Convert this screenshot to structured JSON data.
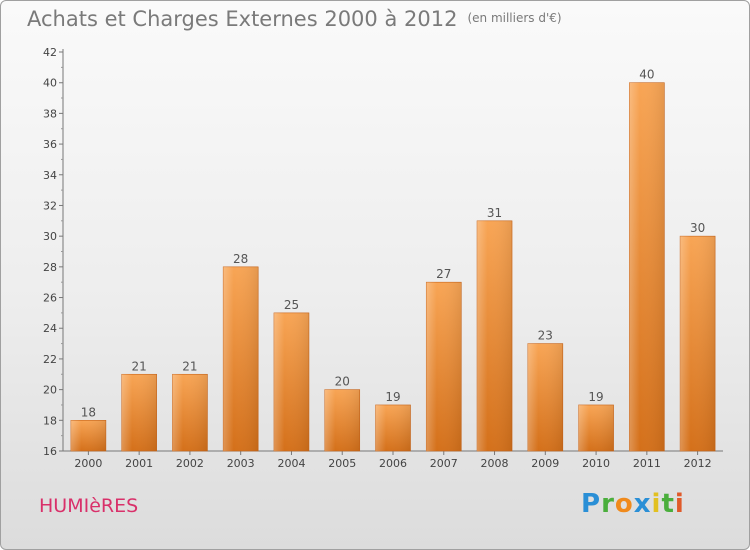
{
  "title": "Achats et Charges Externes 2000 à 2012",
  "subtitle": "(en milliers d'€)",
  "commune": "HUMIèRES",
  "logo": {
    "letters": [
      {
        "ch": "P",
        "color": "#2a8fd6"
      },
      {
        "ch": "r",
        "color": "#4aae3c"
      },
      {
        "ch": "o",
        "color": "#f08a1c"
      },
      {
        "ch": "x",
        "color": "#2a8fd6"
      },
      {
        "ch": "i",
        "color": "#e2c020"
      },
      {
        "ch": "t",
        "color": "#4aae3c"
      },
      {
        "ch": "i",
        "color": "#e05a2a"
      }
    ]
  },
  "chart_data": {
    "type": "bar",
    "title": "Achats et Charges Externes 2000 à 2012",
    "subtitle": "(en milliers d'€)",
    "categories": [
      "2000",
      "2001",
      "2002",
      "2003",
      "2004",
      "2005",
      "2006",
      "2007",
      "2008",
      "2009",
      "2010",
      "2011",
      "2012"
    ],
    "values": [
      18,
      21,
      21,
      28,
      25,
      20,
      19,
      27,
      31,
      23,
      19,
      40,
      30
    ],
    "ylim": [
      16,
      42
    ],
    "yticks": [
      16,
      18,
      20,
      22,
      24,
      26,
      28,
      30,
      32,
      34,
      36,
      38,
      40,
      42
    ],
    "xlabel": "",
    "ylabel": "",
    "grid": false,
    "bar_color": "#f0882a",
    "data_labels": true
  }
}
